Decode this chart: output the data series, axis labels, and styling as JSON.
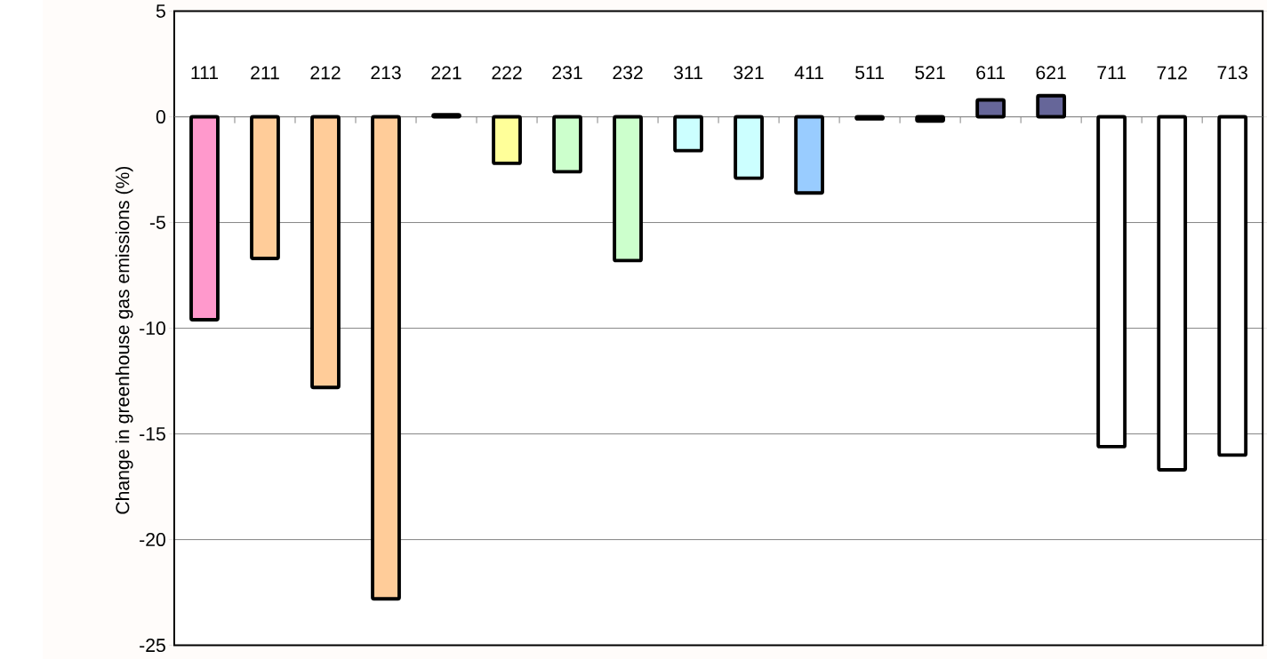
{
  "chart_data": {
    "type": "bar",
    "ylabel": "Change in greenhouse gas emissions (%)",
    "categories": [
      "111",
      "211",
      "212",
      "213",
      "221",
      "222",
      "231",
      "232",
      "311",
      "321",
      "411",
      "511",
      "521",
      "611",
      "621",
      "711",
      "712",
      "713"
    ],
    "values": [
      -9.6,
      -6.7,
      -12.8,
      -22.8,
      0.1,
      -2.2,
      -2.6,
      -6.8,
      -1.6,
      -2.9,
      -3.6,
      -0.1,
      -0.2,
      0.8,
      1.0,
      -15.6,
      -16.7,
      -16.0
    ],
    "colors": [
      "#ff99cc",
      "#ffcc99",
      "#ffcc99",
      "#ffcc99",
      "#000000",
      "#ffff99",
      "#ccffcc",
      "#ccffcc",
      "#ccffff",
      "#ccffff",
      "#99ccff",
      "#000000",
      "#000000",
      "#666699",
      "#666699",
      "#ffffff",
      "#ffffff",
      "#ffffff"
    ],
    "ylim": [
      -25,
      5
    ],
    "yticks": [
      -25,
      -20,
      -15,
      -10,
      -5,
      0,
      5
    ],
    "grid": "y"
  }
}
